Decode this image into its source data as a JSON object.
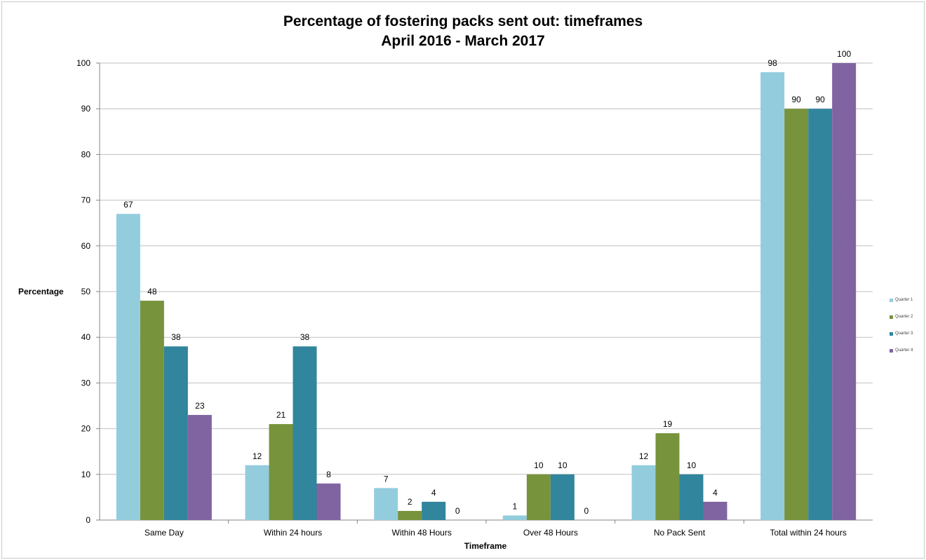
{
  "chart_data": {
    "type": "bar",
    "title": "Percentage of fostering packs sent out: timeframes",
    "subtitle": "April 2016 - March 2017",
    "xlabel": "Timeframe",
    "ylabel": "Percentage",
    "ylim": [
      0,
      100
    ],
    "yticks": [
      0,
      10,
      20,
      30,
      40,
      50,
      60,
      70,
      80,
      90,
      100
    ],
    "grid": true,
    "legend_position": "right",
    "categories": [
      "Same Day",
      "Within 24 hours",
      "Within 48 Hours",
      "Over 48 Hours",
      "No Pack Sent",
      "Total within 24 hours"
    ],
    "series": [
      {
        "name": "Quarter 1",
        "color": "#93cddd",
        "values": [
          67,
          12,
          7,
          1,
          12,
          98
        ]
      },
      {
        "name": "Quarter 2",
        "color": "#77933c",
        "values": [
          48,
          21,
          2,
          10,
          19,
          90
        ]
      },
      {
        "name": "Quarter 3",
        "color": "#31859c",
        "values": [
          38,
          38,
          4,
          10,
          10,
          90
        ]
      },
      {
        "name": "Quarter 4",
        "color": "#8064a2",
        "values": [
          23,
          8,
          0,
          0,
          4,
          100
        ]
      }
    ]
  }
}
